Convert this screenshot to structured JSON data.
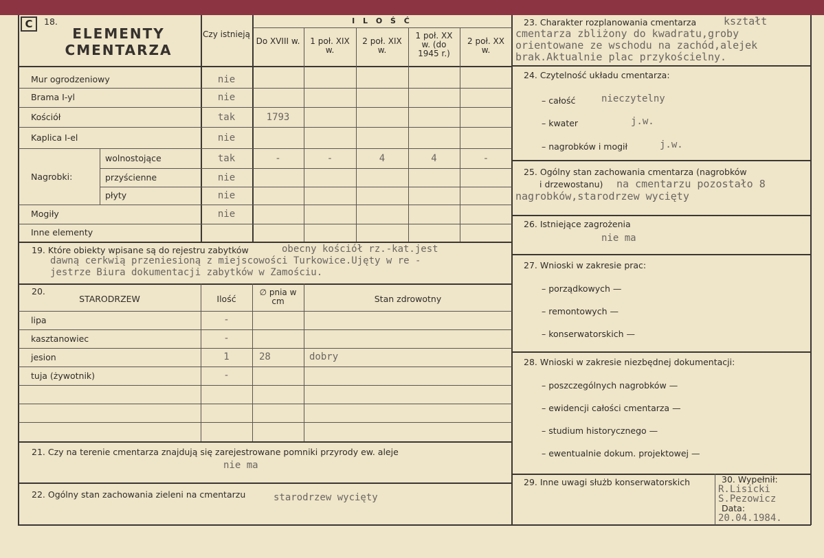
{
  "s18": {
    "badge": "C",
    "num": "18.",
    "title1": "ELEMENTY",
    "title2": "CMENTARZA",
    "czy": "Czy istnieją",
    "ilosc": "I L O Ś Ć",
    "cols": [
      "Do XVIII w.",
      "1 poł. XIX w.",
      "2 poł. XIX w.",
      "1 poł. XX w. (do 1945 r.)",
      "2 poł. XX w."
    ],
    "nagrobki": "Nagrobki:",
    "rows": [
      {
        "label": "Mur ogrodzeniowy",
        "czy": "nie",
        "vals": [
          "",
          "",
          "",
          "",
          ""
        ]
      },
      {
        "label": "Brama I-yl",
        "czy": "nie",
        "vals": [
          "",
          "",
          "",
          "",
          ""
        ]
      },
      {
        "label": "Kościół",
        "czy": "tak",
        "vals": [
          "1793",
          "",
          "",
          "",
          ""
        ]
      },
      {
        "label": "Kaplica I-el",
        "czy": "nie",
        "vals": [
          "",
          "",
          "",
          "",
          ""
        ]
      },
      {
        "label": "wolnostojące",
        "czy": "tak",
        "vals": [
          "-",
          "-",
          "4",
          "4",
          "-"
        ]
      },
      {
        "label": "przyścienne",
        "czy": "nie",
        "vals": [
          "",
          "",
          "",
          "",
          ""
        ]
      },
      {
        "label": "płyty",
        "czy": "nie",
        "vals": [
          "",
          "",
          "",
          "",
          ""
        ]
      },
      {
        "label": "Mogiły",
        "czy": "nie",
        "vals": [
          "",
          "",
          "",
          "",
          ""
        ]
      },
      {
        "label": "Inne elementy",
        "czy": "",
        "vals": [
          "",
          "",
          "",
          "",
          ""
        ]
      }
    ]
  },
  "s19": {
    "label": "19. Które obiekty wpisane są do rejestru zabytków",
    "l1": "obecny kościół rz.-kat.jest",
    "l2": "dawną cerkwią przeniesioną z miejscowości Turkowice.Ujęty w re -",
    "l3": "jestrze Biura dokumentacji zabytków w Zamościu."
  },
  "s20": {
    "num": "20.",
    "title": "STARODRZEW",
    "ilosc": "Ilość",
    "pnia": "∅ pnia w cm",
    "stan": "Stan zdrowotny",
    "rows": [
      {
        "name": "lipa",
        "ilosc": "-",
        "pnia": "",
        "stan": ""
      },
      {
        "name": "kasztanowiec",
        "ilosc": "-",
        "pnia": "",
        "stan": ""
      },
      {
        "name": "jesion",
        "ilosc": "1",
        "pnia": "28",
        "stan": "dobry"
      },
      {
        "name": "tuja (żywotnik)",
        "ilosc": "-",
        "pnia": "",
        "stan": ""
      }
    ]
  },
  "s21": {
    "label": "21. Czy na terenie cmentarza znajdują się zarejestrowane pomniki przyrody ew. aleje",
    "value": "nie ma"
  },
  "s22": {
    "label": "22. Ogólny stan zachowania zieleni na cmentarzu",
    "value": "starodrzew wycięty"
  },
  "s23": {
    "label": "23. Charakter rozplanowania cmentarza",
    "l0": "kształt",
    "l1": "cmentarza zbliżony do kwadratu,groby",
    "l2": "orientowane ze wschodu na zachód,alejek",
    "l3": "brak.Aktualnie plac przykościelny."
  },
  "s24": {
    "label": "24. Czytelność układu cmentarza:",
    "items": [
      {
        "k": "– całość",
        "v": "nieczytelny"
      },
      {
        "k": "– kwater",
        "v": "j.w."
      },
      {
        "k": "– nagrobków i mogił",
        "v": "j.w."
      }
    ]
  },
  "s25": {
    "label1": "25. Ogólny stan zachowania cmentarza (nagrobków",
    "label2": "i drzewostanu)",
    "v1": "na cmentarzu pozostało 8",
    "v2": "nagrobków,starodrzew wycięty"
  },
  "s26": {
    "label": "26. Istniejące zagrożenia",
    "value": "nie ma"
  },
  "s27": {
    "label": "27. Wnioski w zakresie prac:",
    "items": [
      "– porządkowych —",
      "– remontowych —",
      "– konserwatorskich —"
    ]
  },
  "s28": {
    "label": "28. Wnioski w zakresie niezbędnej dokumentacji:",
    "items": [
      "– poszczególnych nagrobków —",
      "– ewidencji całości cmentarza —",
      "– studium historycznego —",
      "– ewentualnie dokum. projektowej —"
    ]
  },
  "s29": {
    "label": "29. Inne uwagi służb konserwatorskich"
  },
  "s30": {
    "label": "30. Wypełnił:",
    "names1": "R.Lisicki",
    "names2": "S.Pezowicz",
    "date_label": "Data:",
    "date": "20.04.1984."
  }
}
